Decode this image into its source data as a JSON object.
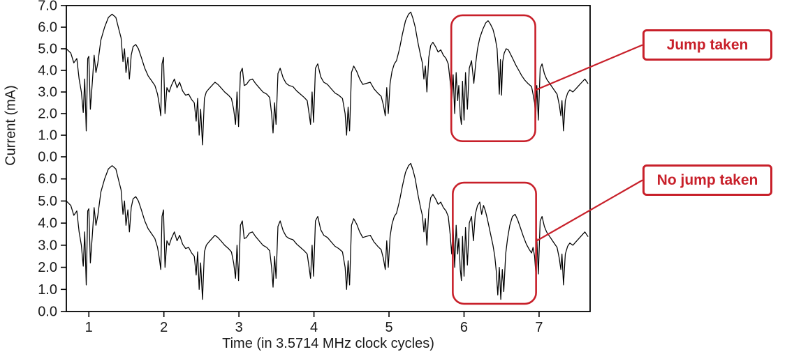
{
  "colors": {
    "trace": "#000000",
    "accent": "#c8202a",
    "text": "#1a1a1a"
  },
  "chart_data": {
    "type": "line",
    "title": "",
    "xlabel": "Time (in 3.5714 MHz clock cycles)",
    "ylabel": "Current (mA)",
    "x_range": [
      0.7,
      7.68
    ],
    "x_ticks": [
      {
        "v": 1,
        "label": "1"
      },
      {
        "v": 2,
        "label": "2"
      },
      {
        "v": 3,
        "label": "3"
      },
      {
        "v": 4,
        "label": "4"
      },
      {
        "v": 5,
        "label": "5"
      },
      {
        "v": 6,
        "label": "6"
      },
      {
        "v": 7,
        "label": "7"
      }
    ],
    "panels": [
      {
        "name": "jump-taken-trace",
        "ylim": [
          0,
          7
        ],
        "y_tick_labels": [
          "0.0",
          "1.0",
          "2.0",
          "3.0",
          "4.0",
          "5.0",
          "6.0",
          "7.0"
        ]
      },
      {
        "name": "no-jump-taken-trace",
        "ylim": [
          0,
          7
        ],
        "y_tick_labels": [
          "0.0",
          "1.0",
          "2.0",
          "3.0",
          "4.0",
          "5.0",
          "6.0"
        ]
      }
    ],
    "segments": {
      "pre": [
        [
          0.7,
          5.0
        ],
        [
          0.76,
          4.8
        ],
        [
          0.8,
          4.35
        ],
        [
          0.84,
          4.55
        ],
        [
          0.87,
          3.6
        ],
        [
          0.9,
          3.0
        ],
        [
          0.925,
          2.05
        ],
        [
          0.945,
          3.6
        ],
        [
          0.965,
          1.2
        ],
        [
          0.985,
          4.55
        ],
        [
          1.0,
          4.65
        ],
        [
          1.02,
          2.2
        ],
        [
          1.045,
          3.4
        ],
        [
          1.07,
          4.7
        ],
        [
          1.095,
          3.9
        ],
        [
          1.12,
          4.35
        ],
        [
          1.16,
          5.4
        ],
        [
          1.21,
          6.0
        ],
        [
          1.26,
          6.45
        ],
        [
          1.31,
          6.6
        ],
        [
          1.36,
          6.45
        ],
        [
          1.4,
          5.9
        ],
        [
          1.43,
          5.5
        ],
        [
          1.455,
          4.4
        ],
        [
          1.475,
          5.0
        ],
        [
          1.495,
          3.9
        ],
        [
          1.52,
          4.6
        ],
        [
          1.54,
          3.6
        ],
        [
          1.565,
          4.7
        ],
        [
          1.59,
          5.1
        ],
        [
          1.625,
          5.2
        ],
        [
          1.66,
          5.0
        ],
        [
          1.7,
          4.6
        ],
        [
          1.745,
          4.1
        ],
        [
          1.79,
          3.75
        ],
        [
          1.84,
          3.5
        ],
        [
          1.88,
          3.3
        ],
        [
          1.915,
          2.9
        ],
        [
          1.94,
          2.4
        ],
        [
          1.958,
          1.9
        ],
        [
          1.975,
          4.3
        ],
        [
          1.995,
          4.6
        ],
        [
          2.015,
          2.0
        ],
        [
          2.04,
          3.2
        ],
        [
          2.07,
          3.0
        ],
        [
          2.1,
          3.3
        ],
        [
          2.14,
          3.6
        ],
        [
          2.175,
          3.2
        ],
        [
          2.21,
          3.45
        ],
        [
          2.25,
          3.05
        ],
        [
          2.29,
          2.85
        ],
        [
          2.33,
          2.9
        ],
        [
          2.37,
          2.65
        ],
        [
          2.405,
          2.5
        ],
        [
          2.43,
          1.65
        ],
        [
          2.45,
          2.7
        ],
        [
          2.47,
          1.0
        ],
        [
          2.49,
          2.2
        ],
        [
          2.515,
          0.55
        ],
        [
          2.54,
          2.7
        ],
        [
          2.565,
          3.0
        ],
        [
          2.6,
          3.15
        ],
        [
          2.64,
          3.3
        ],
        [
          2.68,
          3.45
        ],
        [
          2.72,
          3.35
        ],
        [
          2.76,
          3.2
        ],
        [
          2.81,
          3.0
        ],
        [
          2.86,
          2.85
        ],
        [
          2.9,
          2.7
        ],
        [
          2.93,
          2.2
        ],
        [
          2.955,
          1.5
        ],
        [
          2.975,
          3.0
        ],
        [
          2.995,
          1.4
        ],
        [
          3.02,
          3.9
        ],
        [
          3.045,
          4.1
        ],
        [
          3.07,
          3.3
        ],
        [
          3.1,
          3.35
        ],
        [
          3.14,
          3.55
        ],
        [
          3.18,
          3.6
        ],
        [
          3.22,
          3.4
        ],
        [
          3.27,
          3.2
        ],
        [
          3.32,
          3.0
        ],
        [
          3.37,
          2.9
        ],
        [
          3.41,
          2.75
        ],
        [
          3.435,
          2.0
        ],
        [
          3.455,
          1.1
        ],
        [
          3.475,
          2.5
        ],
        [
          3.495,
          1.5
        ],
        [
          3.52,
          3.85
        ],
        [
          3.55,
          4.1
        ],
        [
          3.59,
          3.65
        ],
        [
          3.63,
          3.4
        ],
        [
          3.67,
          3.3
        ],
        [
          3.72,
          3.25
        ],
        [
          3.77,
          3.05
        ],
        [
          3.82,
          2.9
        ],
        [
          3.87,
          2.75
        ],
        [
          3.91,
          2.6
        ],
        [
          3.935,
          2.0
        ],
        [
          3.955,
          1.5
        ],
        [
          3.975,
          3.0
        ],
        [
          3.995,
          1.6
        ],
        [
          4.02,
          4.1
        ],
        [
          4.05,
          4.3
        ],
        [
          4.09,
          3.7
        ],
        [
          4.13,
          3.45
        ],
        [
          4.18,
          3.35
        ],
        [
          4.23,
          3.15
        ],
        [
          4.28,
          2.95
        ],
        [
          4.33,
          2.85
        ],
        [
          4.38,
          2.7
        ],
        [
          4.415,
          2.0
        ],
        [
          4.435,
          1.0
        ],
        [
          4.455,
          2.3
        ],
        [
          4.475,
          1.2
        ],
        [
          4.5,
          3.9
        ],
        [
          4.53,
          4.2
        ],
        [
          4.57,
          3.95
        ],
        [
          4.61,
          3.6
        ],
        [
          4.65,
          3.35
        ],
        [
          4.7,
          3.4
        ],
        [
          4.75,
          3.45
        ],
        [
          4.8,
          3.15
        ],
        [
          4.85,
          2.95
        ],
        [
          4.895,
          2.8
        ],
        [
          4.925,
          2.4
        ],
        [
          4.95,
          1.9
        ],
        [
          4.97,
          3.2
        ],
        [
          4.99,
          2.0
        ],
        [
          5.015,
          3.4
        ],
        [
          5.04,
          3.95
        ],
        [
          5.07,
          4.3
        ],
        [
          5.1,
          4.45
        ],
        [
          5.14,
          5.0
        ],
        [
          5.18,
          5.7
        ],
        [
          5.22,
          6.3
        ],
        [
          5.26,
          6.6
        ],
        [
          5.29,
          6.7
        ],
        [
          5.32,
          6.4
        ],
        [
          5.35,
          6.0
        ],
        [
          5.385,
          5.3
        ],
        [
          5.42,
          4.7
        ],
        [
          5.445,
          4.35
        ],
        [
          5.465,
          3.6
        ],
        [
          5.485,
          4.2
        ],
        [
          5.505,
          3.0
        ],
        [
          5.53,
          4.6
        ],
        [
          5.555,
          5.15
        ],
        [
          5.585,
          5.3
        ],
        [
          5.62,
          5.1
        ],
        [
          5.655,
          4.85
        ],
        [
          5.69,
          4.95
        ],
        [
          5.725,
          4.7
        ],
        [
          5.76,
          4.55
        ],
        [
          5.79,
          4.3
        ],
        [
          5.815,
          3.5
        ],
        [
          5.835,
          2.6
        ],
        [
          5.855,
          3.8
        ],
        [
          5.875,
          2.0
        ],
        [
          5.895,
          3.9
        ],
        [
          5.915,
          2.6
        ],
        [
          5.93,
          3.3
        ]
      ],
      "jump_region": [
        [
          5.95,
          1.9
        ],
        [
          5.965,
          1.5
        ],
        [
          5.98,
          3.5
        ],
        [
          6.0,
          1.7
        ],
        [
          6.02,
          3.9
        ],
        [
          6.045,
          2.2
        ],
        [
          6.07,
          4.1
        ],
        [
          6.1,
          4.45
        ],
        [
          6.13,
          3.4
        ],
        [
          6.155,
          4.3
        ],
        [
          6.18,
          5.0
        ],
        [
          6.21,
          5.5
        ],
        [
          6.25,
          5.9
        ],
        [
          6.29,
          6.2
        ],
        [
          6.32,
          6.3
        ],
        [
          6.35,
          6.15
        ],
        [
          6.385,
          5.9
        ],
        [
          6.415,
          5.5
        ],
        [
          6.44,
          5.0
        ],
        [
          6.455,
          4.0
        ],
        [
          6.47,
          2.9
        ],
        [
          6.485,
          4.5
        ],
        [
          6.5,
          2.85
        ],
        [
          6.515,
          4.4
        ],
        [
          6.535,
          4.8
        ],
        [
          6.56,
          5.0
        ],
        [
          6.59,
          4.95
        ],
        [
          6.62,
          4.75
        ],
        [
          6.655,
          4.5
        ],
        [
          6.69,
          4.25
        ],
        [
          6.73,
          4.0
        ],
        [
          6.77,
          3.75
        ],
        [
          6.81,
          3.55
        ],
        [
          6.85,
          3.4
        ],
        [
          6.9,
          3.25
        ]
      ],
      "no_jump_region": [
        [
          5.95,
          1.9
        ],
        [
          5.965,
          1.4
        ],
        [
          5.98,
          3.4
        ],
        [
          6.0,
          1.6
        ],
        [
          6.02,
          3.8
        ],
        [
          6.045,
          2.1
        ],
        [
          6.07,
          4.0
        ],
        [
          6.1,
          4.3
        ],
        [
          6.125,
          3.2
        ],
        [
          6.15,
          4.4
        ],
        [
          6.18,
          4.8
        ],
        [
          6.21,
          4.95
        ],
        [
          6.235,
          4.4
        ],
        [
          6.26,
          4.8
        ],
        [
          6.285,
          4.55
        ],
        [
          6.31,
          4.2
        ],
        [
          6.335,
          3.8
        ],
        [
          6.36,
          3.4
        ],
        [
          6.385,
          3.0
        ],
        [
          6.41,
          2.5
        ],
        [
          6.43,
          1.8
        ],
        [
          6.45,
          0.75
        ],
        [
          6.47,
          2.0
        ],
        [
          6.49,
          0.55
        ],
        [
          6.51,
          1.9
        ],
        [
          6.53,
          0.9
        ],
        [
          6.555,
          2.6
        ],
        [
          6.58,
          3.3
        ],
        [
          6.61,
          3.9
        ],
        [
          6.645,
          4.3
        ],
        [
          6.68,
          4.4
        ],
        [
          6.715,
          4.15
        ],
        [
          6.75,
          3.8
        ],
        [
          6.79,
          3.4
        ],
        [
          6.83,
          3.05
        ],
        [
          6.87,
          2.8
        ],
        [
          6.9,
          2.65
        ]
      ],
      "post": [
        [
          6.92,
          2.9
        ],
        [
          6.94,
          2.5
        ],
        [
          6.955,
          1.8
        ],
        [
          6.97,
          3.3
        ],
        [
          6.99,
          1.7
        ],
        [
          7.015,
          4.1
        ],
        [
          7.04,
          4.3
        ],
        [
          7.07,
          3.85
        ],
        [
          7.1,
          3.6
        ],
        [
          7.14,
          3.4
        ],
        [
          7.19,
          3.15
        ],
        [
          7.24,
          2.9
        ],
        [
          7.27,
          2.4
        ],
        [
          7.29,
          1.9
        ],
        [
          7.305,
          2.6
        ],
        [
          7.325,
          1.2
        ],
        [
          7.35,
          2.6
        ],
        [
          7.38,
          2.95
        ],
        [
          7.41,
          3.1
        ],
        [
          7.45,
          3.0
        ],
        [
          7.49,
          3.15
        ],
        [
          7.53,
          3.3
        ],
        [
          7.57,
          3.45
        ],
        [
          7.61,
          3.6
        ],
        [
          7.65,
          3.4
        ]
      ]
    },
    "series": [
      {
        "name": "Jump taken",
        "panel": 0,
        "segments": [
          "pre",
          "jump_region",
          "post"
        ]
      },
      {
        "name": "No jump taken",
        "panel": 1,
        "segments": [
          "pre",
          "no_jump_region",
          "post"
        ]
      }
    ],
    "highlights": [
      {
        "panel": 0,
        "x0": 5.83,
        "x1": 6.95,
        "y0": 0.72,
        "y1": 6.55,
        "label": "Jump taken"
      },
      {
        "panel": 1,
        "x0": 5.85,
        "x1": 6.96,
        "y0": 0.35,
        "y1": 5.83,
        "label": "No jump taken"
      }
    ]
  }
}
